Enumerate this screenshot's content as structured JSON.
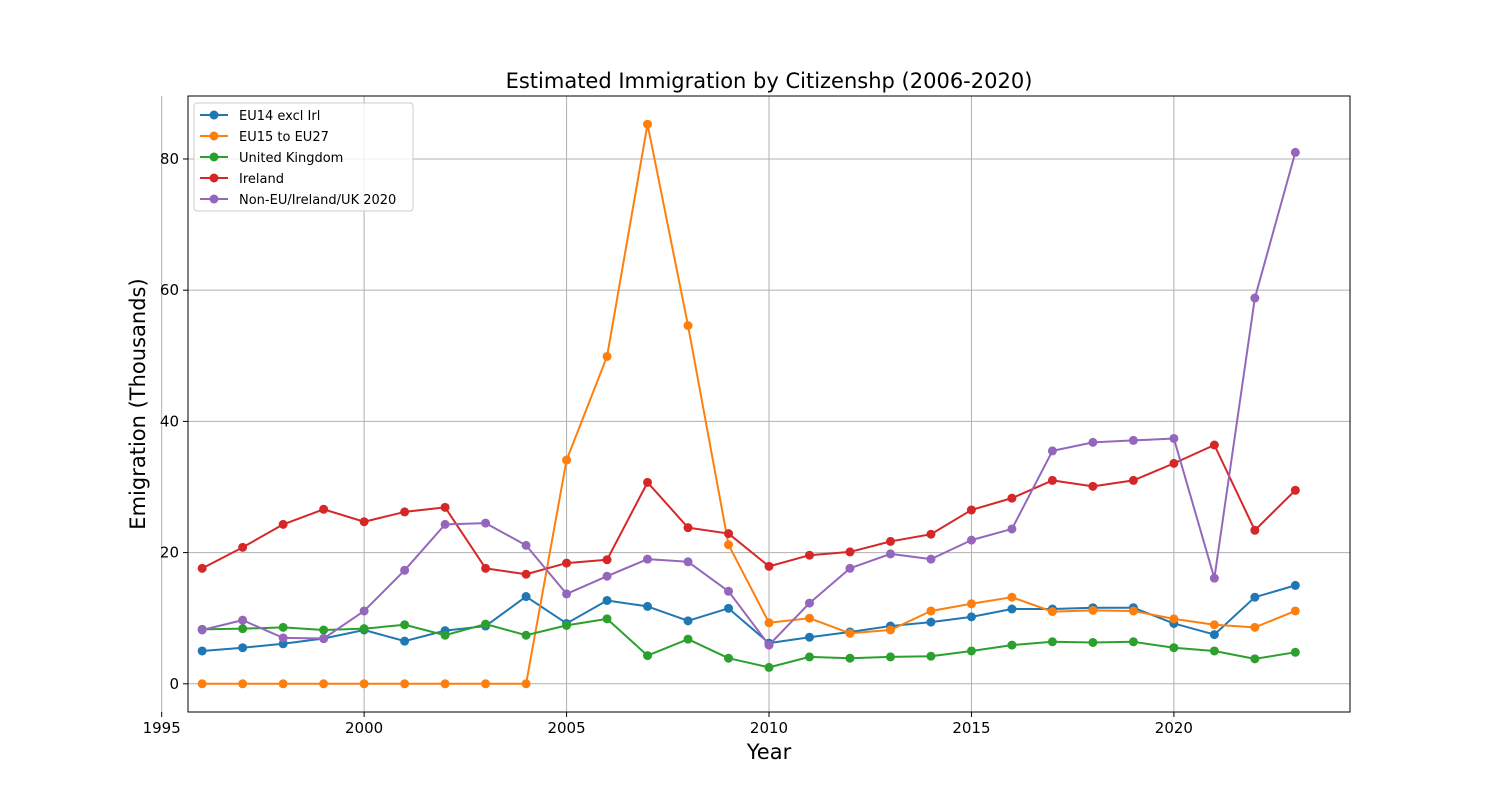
{
  "chart_data": {
    "type": "line",
    "title": "Estimated Immigration by Citizenshp (2006-2020)",
    "xlabel": "Year",
    "ylabel": "Emigration (Thousands)",
    "xlim": [
      1995.65,
      2024.35
    ],
    "ylim": [
      -4.3,
      89.6
    ],
    "xticks": [
      1995,
      2000,
      2005,
      2010,
      2015,
      2020
    ],
    "yticks": [
      0,
      20,
      40,
      60,
      80
    ],
    "grid": true,
    "legend_position": "top-left",
    "x": [
      1996,
      1997,
      1998,
      1999,
      2000,
      2001,
      2002,
      2003,
      2004,
      2005,
      2006,
      2007,
      2008,
      2009,
      2010,
      2011,
      2012,
      2013,
      2014,
      2015,
      2016,
      2017,
      2018,
      2019,
      2020,
      2021,
      2022,
      2023
    ],
    "series": [
      {
        "name": "EU14 excl Irl",
        "color": "#1f77b4",
        "values": [
          5.0,
          5.5,
          6.1,
          6.9,
          8.2,
          6.5,
          8.1,
          8.8,
          13.3,
          9.2,
          12.7,
          11.8,
          9.6,
          11.5,
          6.2,
          7.1,
          7.9,
          8.8,
          9.4,
          10.2,
          11.4,
          11.4,
          11.6,
          11.6,
          9.2,
          7.5,
          13.2,
          15.0
        ]
      },
      {
        "name": "EU15 to EU27",
        "color": "#ff7f0e",
        "values": [
          0.0,
          0.0,
          0.0,
          0.0,
          0.0,
          0.0,
          0.0,
          0.0,
          0.0,
          34.1,
          49.9,
          85.3,
          54.6,
          21.2,
          9.3,
          10.0,
          7.7,
          8.2,
          11.1,
          12.2,
          13.2,
          11.0,
          11.2,
          11.1,
          9.9,
          9.0,
          8.6,
          11.1
        ]
      },
      {
        "name": "United Kingdom",
        "color": "#2ca02c",
        "values": [
          8.3,
          8.4,
          8.6,
          8.2,
          8.4,
          9.0,
          7.4,
          9.1,
          7.4,
          8.9,
          9.9,
          4.3,
          6.8,
          3.9,
          2.5,
          4.1,
          3.9,
          4.1,
          4.2,
          5.0,
          5.9,
          6.4,
          6.3,
          6.4,
          5.5,
          5.0,
          3.8,
          4.8
        ]
      },
      {
        "name": "Ireland",
        "color": "#d62728",
        "values": [
          17.6,
          20.8,
          24.3,
          26.6,
          24.7,
          26.2,
          26.9,
          17.6,
          16.7,
          18.4,
          18.9,
          30.7,
          23.8,
          22.9,
          17.9,
          19.6,
          20.1,
          21.7,
          22.8,
          26.5,
          28.3,
          31.0,
          30.1,
          31.0,
          33.6,
          36.4,
          23.4,
          29.5
        ]
      },
      {
        "name": "Non-EU/Ireland/UK 2020",
        "color": "#9467bd",
        "values": [
          8.2,
          9.7,
          7.0,
          6.9,
          11.1,
          17.3,
          24.3,
          24.5,
          21.1,
          13.7,
          16.4,
          19.0,
          18.6,
          14.1,
          5.9,
          12.3,
          17.6,
          19.8,
          19.0,
          21.9,
          23.6,
          35.5,
          36.8,
          37.1,
          37.4,
          16.1,
          58.8,
          81.0
        ]
      }
    ]
  }
}
